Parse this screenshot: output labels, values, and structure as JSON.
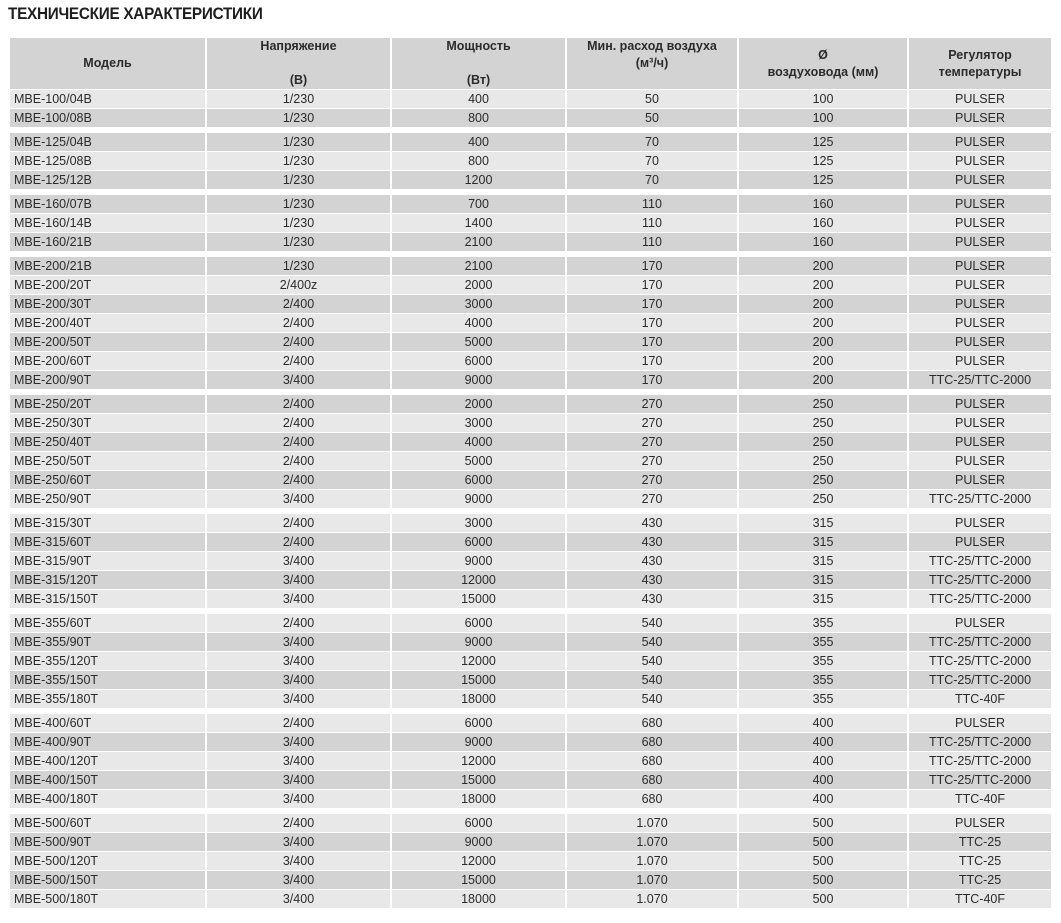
{
  "title": "ТЕХНИЧЕСКИЕ ХАРАКТЕРИСТИКИ",
  "colors": {
    "row_dark": "#d3d3d3",
    "row_light": "#e8e8e8",
    "header": "#d3d3d3"
  },
  "headers": [
    {
      "line1": "Модель",
      "line2": ""
    },
    {
      "line1": "Напряжение",
      "line2": "(В)"
    },
    {
      "line1": "Мощность",
      "line2": "(Вт)"
    },
    {
      "line1": "Мин. расход воздуха",
      "line2": "(м³/ч)"
    },
    {
      "line1": "Ø",
      "line2": "воздуховода (мм)"
    },
    {
      "line1": "Регулятор",
      "line2": "температуры"
    }
  ],
  "groups": [
    {
      "stripe_start": "light",
      "rows": [
        [
          "MBE-100/04B",
          "1/230",
          "400",
          "50",
          "100",
          "PULSER"
        ],
        [
          "MBE-100/08B",
          "1/230",
          "800",
          "50",
          "100",
          "PULSER"
        ]
      ]
    },
    {
      "stripe_start": "dark",
      "rows": [
        [
          "MBE-125/04B",
          "1/230",
          "400",
          "70",
          "125",
          "PULSER"
        ],
        [
          "MBE-125/08B",
          "1/230",
          "800",
          "70",
          "125",
          "PULSER"
        ],
        [
          "MBE-125/12B",
          "1/230",
          "1200",
          "70",
          "125",
          "PULSER"
        ]
      ]
    },
    {
      "stripe_start": "dark",
      "rows": [
        [
          "MBE-160/07B",
          "1/230",
          "700",
          "110",
          "160",
          "PULSER"
        ],
        [
          "MBE-160/14B",
          "1/230",
          "1400",
          "110",
          "160",
          "PULSER"
        ],
        [
          "MBE-160/21B",
          "1/230",
          "2100",
          "110",
          "160",
          "PULSER"
        ]
      ]
    },
    {
      "stripe_start": "dark",
      "rows": [
        [
          "MBE-200/21B",
          "1/230",
          "2100",
          "170",
          "200",
          "PULSER"
        ],
        [
          "MBE-200/20T",
          "2/400z",
          "2000",
          "170",
          "200",
          "PULSER"
        ],
        [
          "MBE-200/30T",
          "2/400",
          "3000",
          "170",
          "200",
          "PULSER"
        ],
        [
          "MBE-200/40T",
          "2/400",
          "4000",
          "170",
          "200",
          "PULSER"
        ],
        [
          "MBE-200/50T",
          "2/400",
          "5000",
          "170",
          "200",
          "PULSER"
        ],
        [
          "MBE-200/60T",
          "2/400",
          "6000",
          "170",
          "200",
          "PULSER"
        ],
        [
          "MBE-200/90T",
          "3/400",
          "9000",
          "170",
          "200",
          "TTC-25/TTC-2000"
        ]
      ]
    },
    {
      "stripe_start": "dark",
      "rows": [
        [
          "MBE-250/20T",
          "2/400",
          "2000",
          "270",
          "250",
          "PULSER"
        ],
        [
          "MBE-250/30T",
          "2/400",
          "3000",
          "270",
          "250",
          "PULSER"
        ],
        [
          "MBE-250/40T",
          "2/400",
          "4000",
          "270",
          "250",
          "PULSER"
        ],
        [
          "MBE-250/50T",
          "2/400",
          "5000",
          "270",
          "250",
          "PULSER"
        ],
        [
          "MBE-250/60T",
          "2/400",
          "6000",
          "270",
          "250",
          "PULSER"
        ],
        [
          "MBE-250/90T",
          "3/400",
          "9000",
          "270",
          "250",
          "TTC-25/TTC-2000"
        ]
      ]
    },
    {
      "stripe_start": "light",
      "rows": [
        [
          "MBE-315/30T",
          "2/400",
          "3000",
          "430",
          "315",
          "PULSER"
        ],
        [
          "MBE-315/60T",
          "2/400",
          "6000",
          "430",
          "315",
          "PULSER"
        ],
        [
          "MBE-315/90T",
          "3/400",
          "9000",
          "430",
          "315",
          "TTC-25/TTC-2000"
        ],
        [
          "MBE-315/120T",
          "3/400",
          "12000",
          "430",
          "315",
          "TTC-25/TTC-2000"
        ],
        [
          "MBE-315/150T",
          "3/400",
          "15000",
          "430",
          "315",
          "TTC-25/TTC-2000"
        ]
      ]
    },
    {
      "stripe_start": "light",
      "rows": [
        [
          "MBE-355/60T",
          "2/400",
          "6000",
          "540",
          "355",
          "PULSER"
        ],
        [
          "MBE-355/90T",
          "3/400",
          "9000",
          "540",
          "355",
          "TTC-25/TTC-2000"
        ],
        [
          "MBE-355/120T",
          "3/400",
          "12000",
          "540",
          "355",
          "TTC-25/TTC-2000"
        ],
        [
          "MBE-355/150T",
          "3/400",
          "15000",
          "540",
          "355",
          "TTC-25/TTC-2000"
        ],
        [
          "MBE-355/180T",
          "3/400",
          "18000",
          "540",
          "355",
          "TTC-40F"
        ]
      ]
    },
    {
      "stripe_start": "light",
      "rows": [
        [
          "MBE-400/60T",
          "2/400",
          "6000",
          "680",
          "400",
          "PULSER"
        ],
        [
          "MBE-400/90T",
          "3/400",
          "9000",
          "680",
          "400",
          "TTC-25/TTC-2000"
        ],
        [
          "MBE-400/120T",
          "3/400",
          "12000",
          "680",
          "400",
          "TTC-25/TTC-2000"
        ],
        [
          "MBE-400/150T",
          "3/400",
          "15000",
          "680",
          "400",
          "TTC-25/TTC-2000"
        ],
        [
          "MBE-400/180T",
          "3/400",
          "18000",
          "680",
          "400",
          "TTC-40F"
        ]
      ]
    },
    {
      "stripe_start": "light",
      "rows": [
        [
          "MBE-500/60T",
          "2/400",
          "6000",
          "1.070",
          "500",
          "PULSER"
        ],
        [
          "MBE-500/90T",
          "3/400",
          "9000",
          "1.070",
          "500",
          "TTC-25"
        ],
        [
          "MBE-500/120T",
          "3/400",
          "12000",
          "1.070",
          "500",
          "TTC-25"
        ],
        [
          "MBE-500/150T",
          "3/400",
          "15000",
          "1.070",
          "500",
          "TTC-25"
        ],
        [
          "MBE-500/180T",
          "3/400",
          "18000",
          "1.070",
          "500",
          "TTC-40F"
        ]
      ]
    }
  ]
}
